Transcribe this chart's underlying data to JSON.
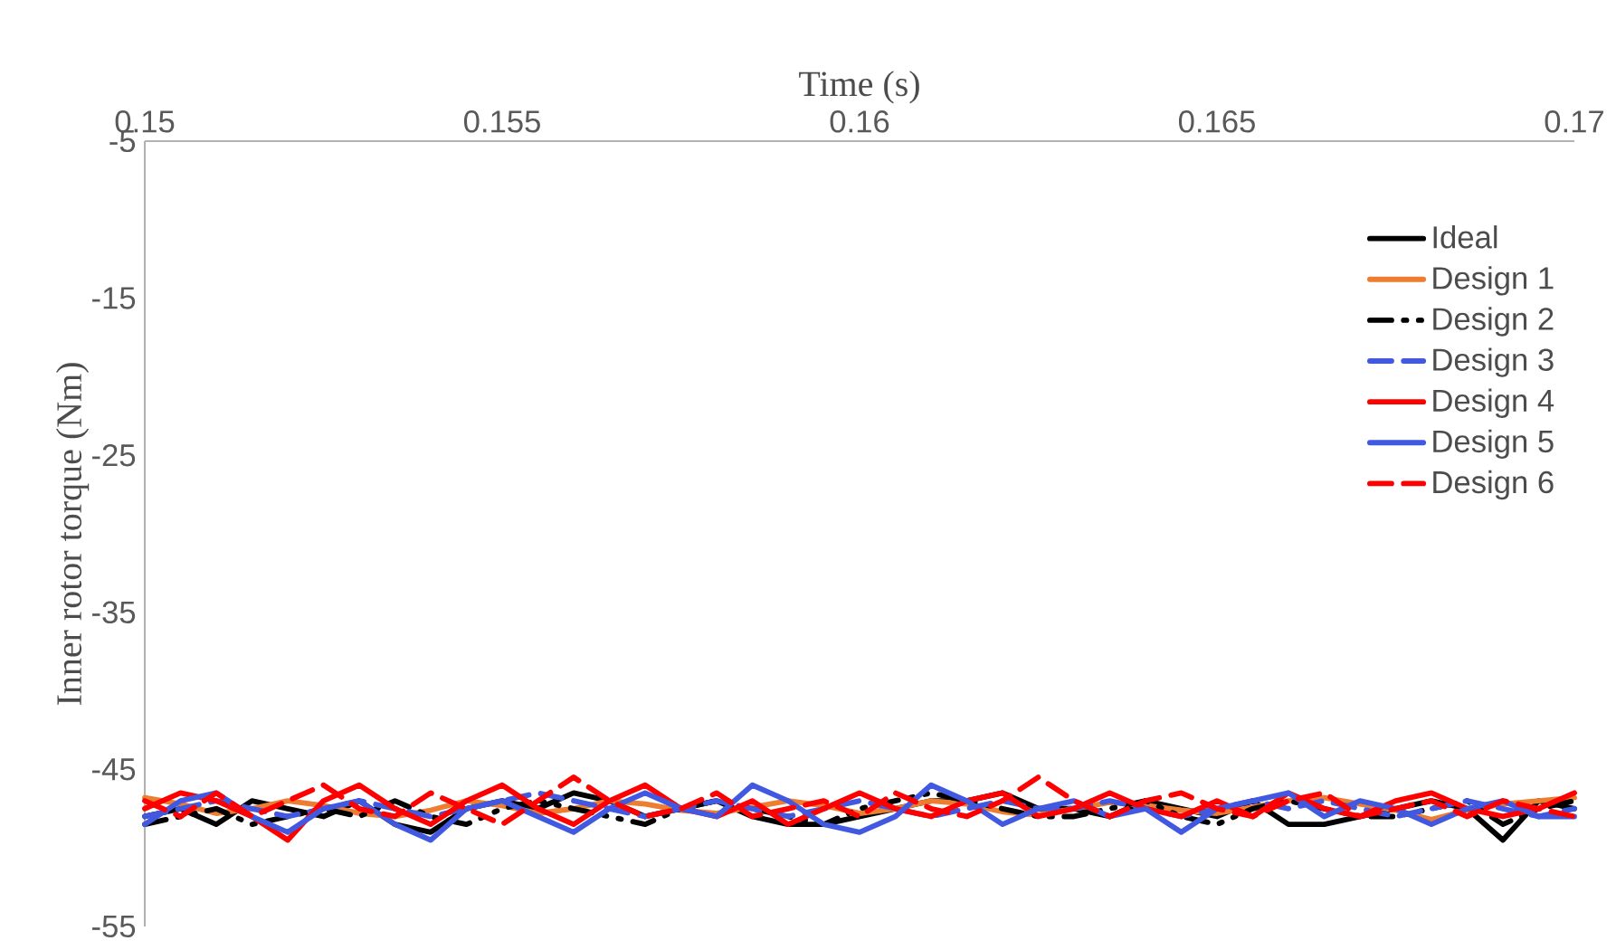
{
  "chart_data": {
    "type": "line",
    "xlabel": "Time (s)",
    "ylabel": "Inner rotor torque (Nm)",
    "x": [
      0.15,
      0.1505,
      0.151,
      0.1515,
      0.152,
      0.1525,
      0.153,
      0.1535,
      0.154,
      0.1545,
      0.155,
      0.1555,
      0.156,
      0.1565,
      0.157,
      0.1575,
      0.158,
      0.1585,
      0.159,
      0.1595,
      0.16,
      0.1605,
      0.161,
      0.1615,
      0.162,
      0.1625,
      0.163,
      0.1635,
      0.164,
      0.1645,
      0.165,
      0.1655,
      0.166,
      0.1665,
      0.167,
      0.1675,
      0.168,
      0.1685,
      0.169,
      0.1695,
      0.17
    ],
    "xlim": [
      0.15,
      0.17
    ],
    "xticks": [
      0.15,
      0.155,
      0.16,
      0.165,
      0.17
    ],
    "ylim": [
      -55,
      -5
    ],
    "yticks": [
      -55,
      -45,
      -35,
      -25,
      -15,
      -5
    ],
    "legend": "right",
    "grid": false,
    "series": [
      {
        "name": "Ideal",
        "color": "#000000",
        "line_style": "solid",
        "values": [
          -48,
          -47.5,
          -48.5,
          -47,
          -47.5,
          -48,
          -47,
          -48.5,
          -49,
          -47.5,
          -47,
          -47.5,
          -46.5,
          -47,
          -48,
          -47.5,
          -47,
          -48,
          -48.5,
          -48.5,
          -48,
          -47.5,
          -47,
          -47,
          -46.5,
          -47.5,
          -47.5,
          -48,
          -47,
          -47.5,
          -48,
          -47,
          -48.5,
          -48.5,
          -48,
          -47.5,
          -47,
          -47.5,
          -49.5,
          -47,
          -47.5
        ]
      },
      {
        "name": "Design 1",
        "color": "#ed7d31",
        "line_style": "solid",
        "values": [
          -46.8,
          -47.2,
          -47.8,
          -47.5,
          -47,
          -47.3,
          -47.8,
          -48,
          -47.6,
          -47,
          -47.3,
          -47.8,
          -47.5,
          -47,
          -47.2,
          -47.6,
          -47.8,
          -47.4,
          -47,
          -47.3,
          -47.8,
          -47.5,
          -47,
          -47.2,
          -47.7,
          -47.9,
          -47.5,
          -47.1,
          -47.3,
          -47.6,
          -47.8,
          -47.4,
          -47,
          -46.8,
          -47.2,
          -47.6,
          -48.2,
          -47.6,
          -47.2,
          -47,
          -46.8
        ]
      },
      {
        "name": "Design 2",
        "color": "#000000",
        "line_style": "dotted",
        "values": [
          -48.5,
          -48,
          -47.5,
          -48.5,
          -48,
          -47.5,
          -48,
          -47,
          -48,
          -48.5,
          -47.5,
          -47,
          -47.5,
          -48,
          -48.5,
          -47.5,
          -47,
          -47.5,
          -48,
          -48.5,
          -47.5,
          -47,
          -46.5,
          -47,
          -47.5,
          -48,
          -48,
          -47.5,
          -47,
          -48,
          -48.5,
          -47.5,
          -47,
          -47.5,
          -48,
          -48,
          -47.5,
          -47,
          -48.5,
          -47.5,
          -47
        ]
      },
      {
        "name": "Design 3",
        "color": "#4159e1",
        "line_style": "dashed",
        "values": [
          -48,
          -47.5,
          -47,
          -47.5,
          -48,
          -47.5,
          -47,
          -47.5,
          -48,
          -47.5,
          -47,
          -46.5,
          -47,
          -47.5,
          -48,
          -47.5,
          -47,
          -47.5,
          -48,
          -47.5,
          -47,
          -47.5,
          -48,
          -47.5,
          -47,
          -47.5,
          -47.5,
          -47,
          -47.5,
          -48,
          -47.5,
          -47,
          -47.5,
          -47,
          -47.5,
          -48,
          -47.5,
          -47,
          -47.5,
          -48,
          -47.5
        ]
      },
      {
        "name": "Design 4",
        "color": "#ff0000",
        "line_style": "solid",
        "values": [
          -47.5,
          -46.5,
          -47,
          -48,
          -49.5,
          -47,
          -46,
          -47.5,
          -48.5,
          -47,
          -46,
          -47.5,
          -48.5,
          -47,
          -46,
          -47.5,
          -48,
          -47,
          -48.5,
          -47.5,
          -46.5,
          -47.5,
          -48,
          -47,
          -46.5,
          -48,
          -47.5,
          -46.5,
          -47.5,
          -48,
          -47,
          -48,
          -46.5,
          -47.5,
          -48,
          -47,
          -46.5,
          -47.5,
          -48,
          -47.5,
          -46.5
        ]
      },
      {
        "name": "Design 5",
        "color": "#4159e1",
        "line_style": "solid",
        "values": [
          -48.5,
          -47,
          -46.5,
          -48,
          -49,
          -47.5,
          -47,
          -48.5,
          -49.5,
          -47.5,
          -47,
          -48,
          -49,
          -47.5,
          -46.5,
          -47.5,
          -48,
          -46,
          -47,
          -48.5,
          -49,
          -48,
          -46,
          -47,
          -48.5,
          -47.5,
          -47,
          -48,
          -47.5,
          -49,
          -47.5,
          -47,
          -46.5,
          -48,
          -47,
          -47.5,
          -48.5,
          -47.5,
          -47,
          -48,
          -48
        ]
      },
      {
        "name": "Design 6",
        "color": "#ff0000",
        "line_style": "dashed",
        "values": [
          -47,
          -48,
          -46.5,
          -48,
          -47,
          -46,
          -47.5,
          -48,
          -46.5,
          -47.5,
          -48.5,
          -47,
          -45.5,
          -47,
          -48,
          -47.5,
          -46.5,
          -48,
          -47.5,
          -47,
          -48,
          -46.5,
          -47.5,
          -48,
          -47,
          -45.5,
          -47,
          -48,
          -47,
          -46.5,
          -47.5,
          -48,
          -47,
          -46.5,
          -48,
          -47.5,
          -47,
          -48,
          -47,
          -47.5,
          -48
        ]
      }
    ]
  }
}
